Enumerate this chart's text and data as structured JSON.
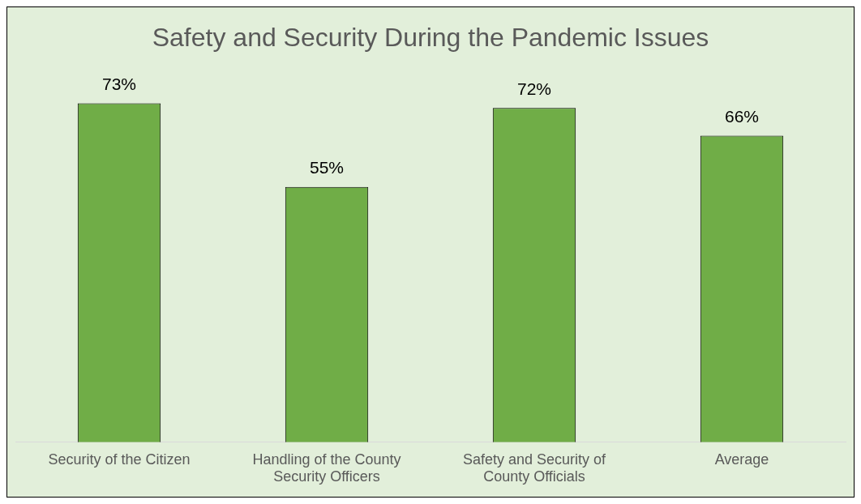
{
  "chart_data": {
    "type": "bar",
    "title": "Safety and Security During the Pandemic Issues",
    "categories": [
      "Security of the Citizen",
      "Handling of the County Security Officers",
      "Safety and Security of County Officials",
      "Average"
    ],
    "values": [
      73,
      55,
      72,
      66
    ],
    "value_labels": [
      "73%",
      "55%",
      "72%",
      "66%"
    ],
    "color": "#70ad47",
    "grid": false,
    "legend": false
  }
}
